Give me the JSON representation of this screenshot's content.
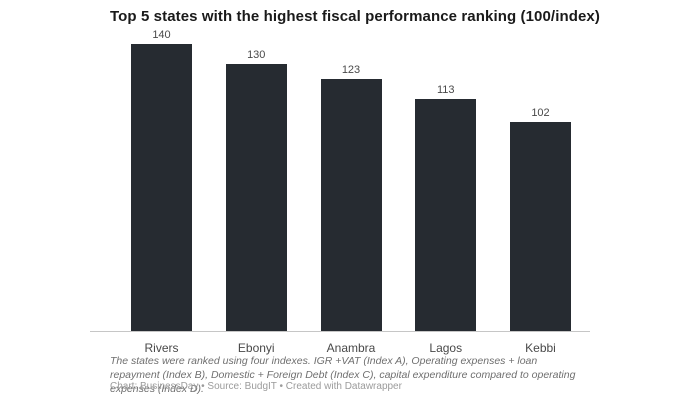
{
  "chart_data": {
    "type": "bar",
    "title": "Top 5 states with the highest fiscal performance ranking (100/index)",
    "categories": [
      "Rivers",
      "Ebonyi",
      "Anambra",
      "Lagos",
      "Kebbi"
    ],
    "values": [
      140,
      130,
      123,
      113,
      102
    ],
    "xlabel": "",
    "ylabel": "",
    "ylim": [
      0,
      140
    ],
    "grid": false,
    "legend": "none",
    "value_labels_shown": true,
    "bar_color": "#262b31",
    "axis_line_color": "#c6c6c6"
  },
  "notes": "The states were ranked using four indexes. IGR +VAT (Index A), Operating expenses + loan repayment (Index B), Domestic + Foreign Debt (Index C), capital expenditure compared to operating expenses (Index D).",
  "attribution": "Chart: BusinessDay • Source: BudgIT • Created with Datawrapper"
}
